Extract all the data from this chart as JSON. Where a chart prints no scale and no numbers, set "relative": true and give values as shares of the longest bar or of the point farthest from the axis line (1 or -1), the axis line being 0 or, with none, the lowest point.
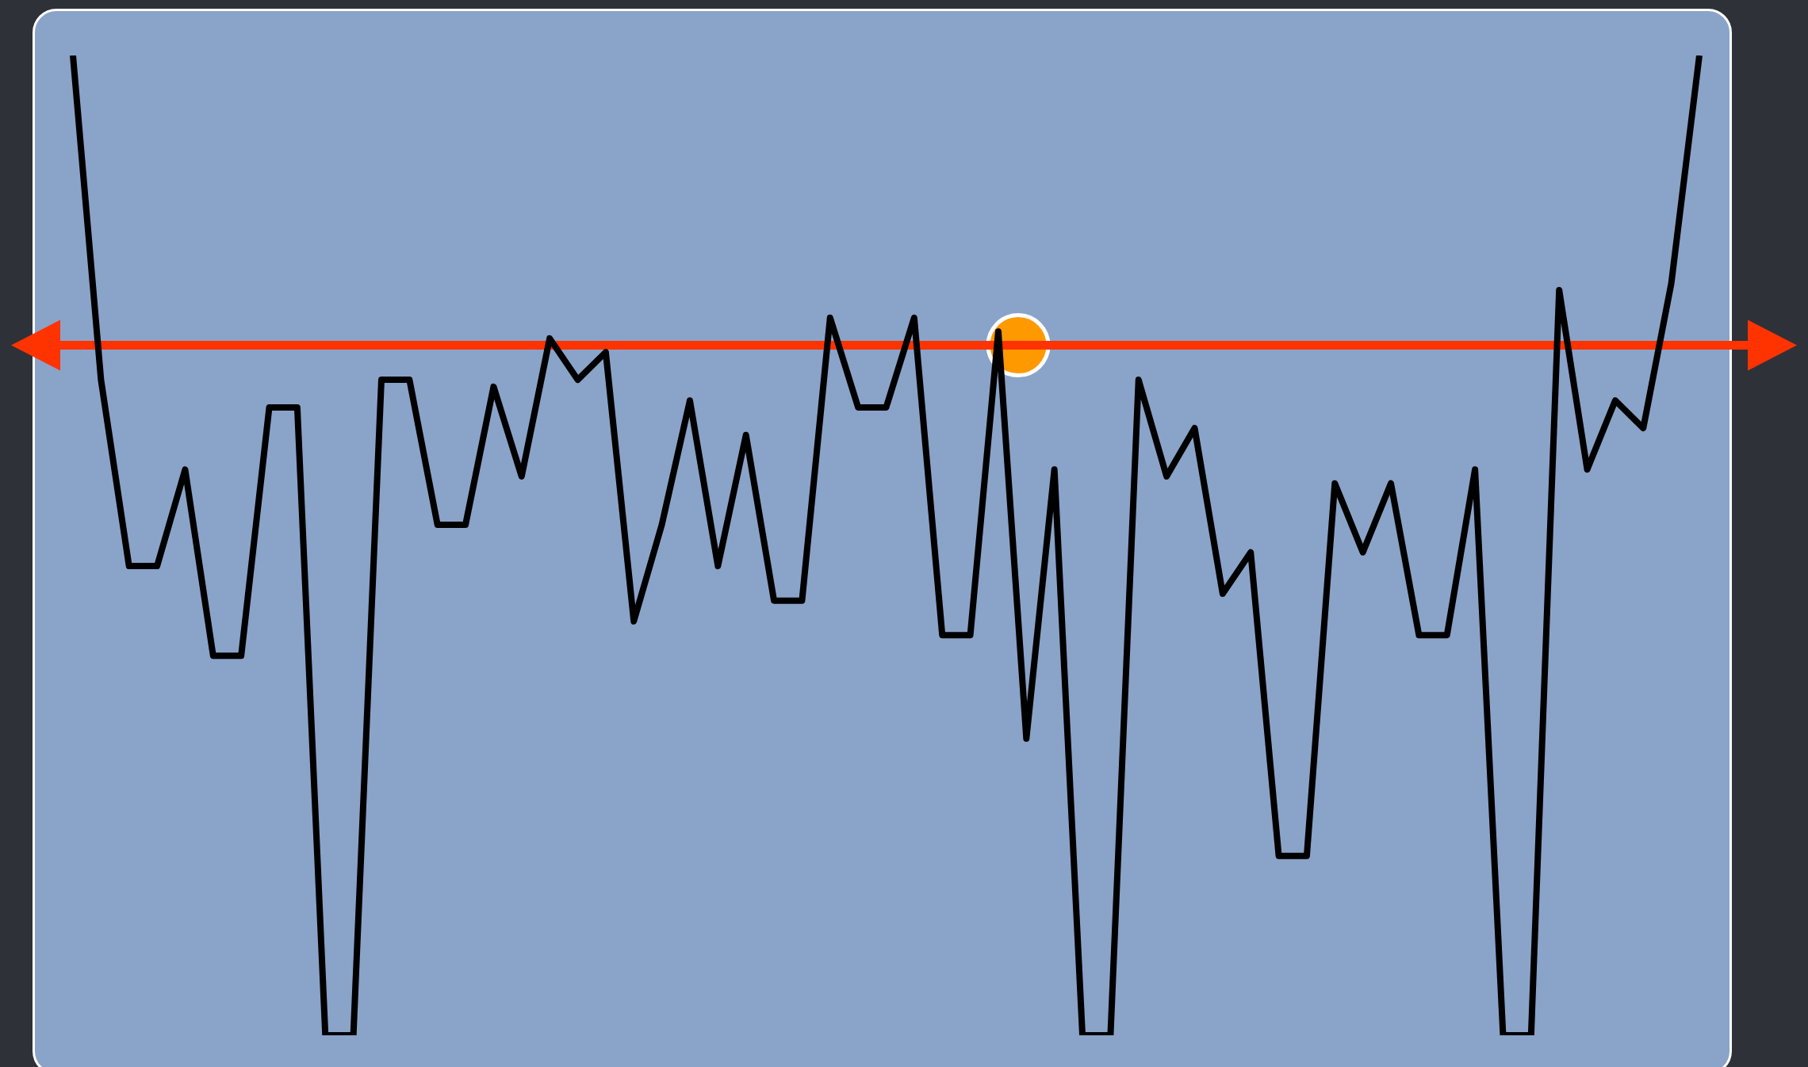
{
  "chart_data": {
    "type": "line",
    "relative": true,
    "legend": false,
    "marker": "none",
    "line_style": "solid",
    "categories": [
      null,
      null,
      null,
      null,
      null,
      null,
      null,
      null,
      null,
      null,
      null,
      null,
      null,
      null,
      null,
      null,
      null,
      null,
      null,
      null,
      null,
      null,
      null,
      null,
      null,
      null,
      null,
      null,
      null,
      null,
      null,
      null,
      null,
      null,
      null,
      null,
      null,
      null,
      null,
      null,
      null,
      null,
      null,
      null,
      null,
      null,
      null,
      null,
      null,
      null,
      null,
      null,
      null,
      null,
      null,
      null,
      null,
      null,
      null
    ],
    "series": [
      {
        "color": "#000000",
        "values": [
          0.42,
          -0.05,
          -0.32,
          -0.32,
          -0.18,
          -0.45,
          -0.45,
          -0.09,
          -0.09,
          -1,
          -1,
          -0.05,
          -0.05,
          -0.26,
          -0.26,
          -0.06,
          -0.19,
          0.01,
          -0.05,
          -0.01,
          -0.4,
          -0.26,
          -0.08,
          -0.32,
          -0.13,
          -0.37,
          -0.37,
          0.04,
          -0.09,
          -0.09,
          0.04,
          -0.42,
          -0.42,
          0.02,
          -0.57,
          -0.18,
          -1,
          -1,
          -0.05,
          -0.19,
          -0.12,
          -0.36,
          -0.3,
          -0.74,
          -0.74,
          -0.2,
          -0.3,
          -0.2,
          -0.42,
          -0.42,
          -0.18,
          -1,
          -1,
          0.08,
          -0.18,
          -0.08,
          -0.12,
          0.09,
          0.42
        ]
      }
    ],
    "ref_lines": [
      {
        "axis": "y",
        "value": 0,
        "color": "#ff3300",
        "line_style": "solid"
      }
    ]
  }
}
